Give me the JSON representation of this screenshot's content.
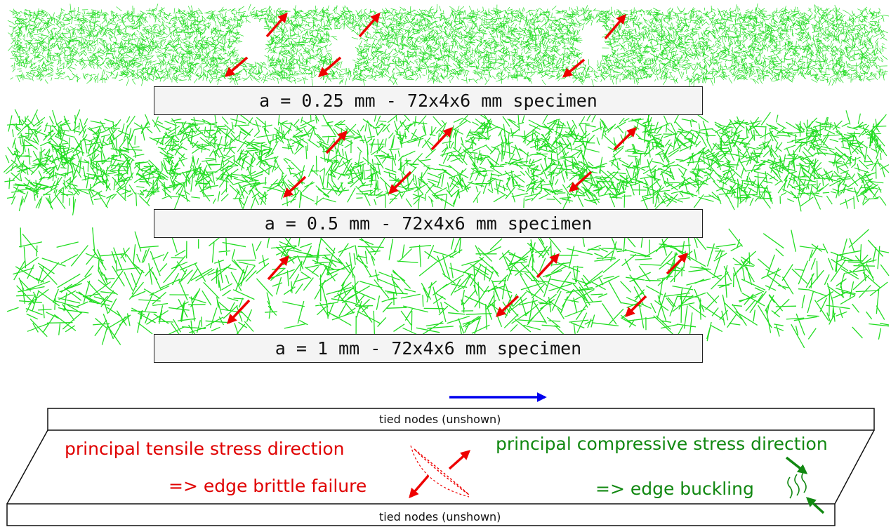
{
  "captions": {
    "panel1": "a = 0.25 mm - 72x4x6 mm specimen",
    "panel2": "a = 0.5 mm - 72x4x6 mm specimen",
    "panel3": "a = 1 mm - 72x4x6 mm specimen"
  },
  "schematic": {
    "tied_top": "tied nodes (unshown)",
    "tied_bottom": "tied nodes (unshown)",
    "tensile_label": "principal tensile stress direction",
    "brittle_label": "=> edge brittle failure",
    "compressive_label": "principal compressive stress direction",
    "buckling_label": "=> edge buckling"
  },
  "colors": {
    "lattice": "#22dd22",
    "arrow_red": "#ee0000",
    "arrow_blue": "#0000ee",
    "arrow_green": "#118811"
  }
}
